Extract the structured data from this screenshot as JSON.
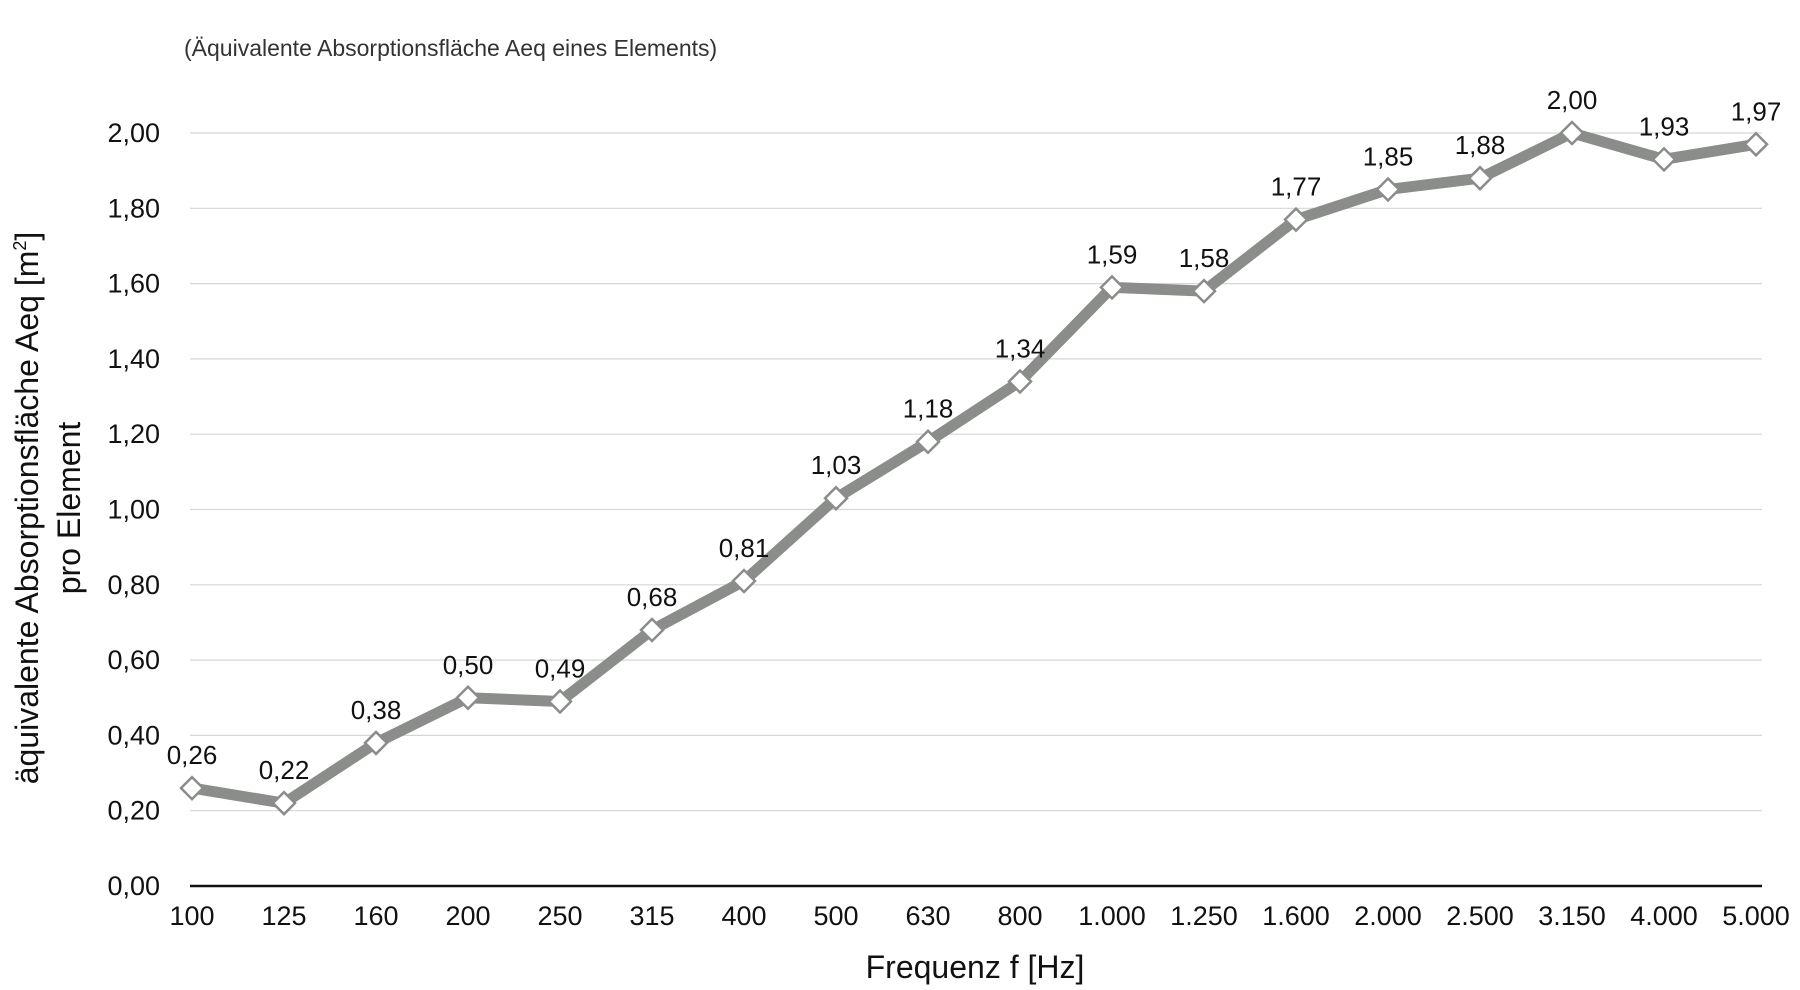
{
  "chart_data": {
    "type": "line",
    "subtitle": "(Äquivalente Absorptionsfläche Aeq eines Elements)",
    "ylabel_line1": "äquivalente Absorptionsfläche Aeq [m",
    "ylabel_sup": "2",
    "ylabel_close": "]",
    "ylabel_line2": "pro Element",
    "xlabel": "Frequenz f [Hz]",
    "categories": [
      "100",
      "125",
      "160",
      "200",
      "250",
      "315",
      "400",
      "500",
      "630",
      "800",
      "1.000",
      "1.250",
      "1.600",
      "2.000",
      "2.500",
      "3.150",
      "4.000",
      "5.000"
    ],
    "values": [
      0.26,
      0.22,
      0.38,
      0.5,
      0.49,
      0.68,
      0.81,
      1.03,
      1.18,
      1.34,
      1.59,
      1.58,
      1.77,
      1.85,
      1.88,
      2.0,
      1.93,
      1.97
    ],
    "value_labels": [
      "0,26",
      "0,22",
      "0,38",
      "0,50",
      "0,49",
      "0,68",
      "0,81",
      "1,03",
      "1,18",
      "1,34",
      "1,59",
      "1,58",
      "1,77",
      "1,85",
      "1,88",
      "2,00",
      "1,93",
      "1,97"
    ],
    "yticks": [
      0,
      0.2,
      0.4,
      0.6,
      0.8,
      1.0,
      1.2,
      1.4,
      1.6,
      1.8,
      2.0
    ],
    "ytick_labels": [
      "0,00",
      "0,20",
      "0,40",
      "0,60",
      "0,80",
      "1,00",
      "1,20",
      "1,40",
      "1,60",
      "1,80",
      "2,00"
    ],
    "ylim": [
      0,
      2.0
    ],
    "grid": true,
    "marker": "diamond",
    "colors": {
      "line": "#8a8d89",
      "marker_fill": "#ffffff",
      "grid": "#d6d6d6",
      "axis": "#111111"
    }
  }
}
